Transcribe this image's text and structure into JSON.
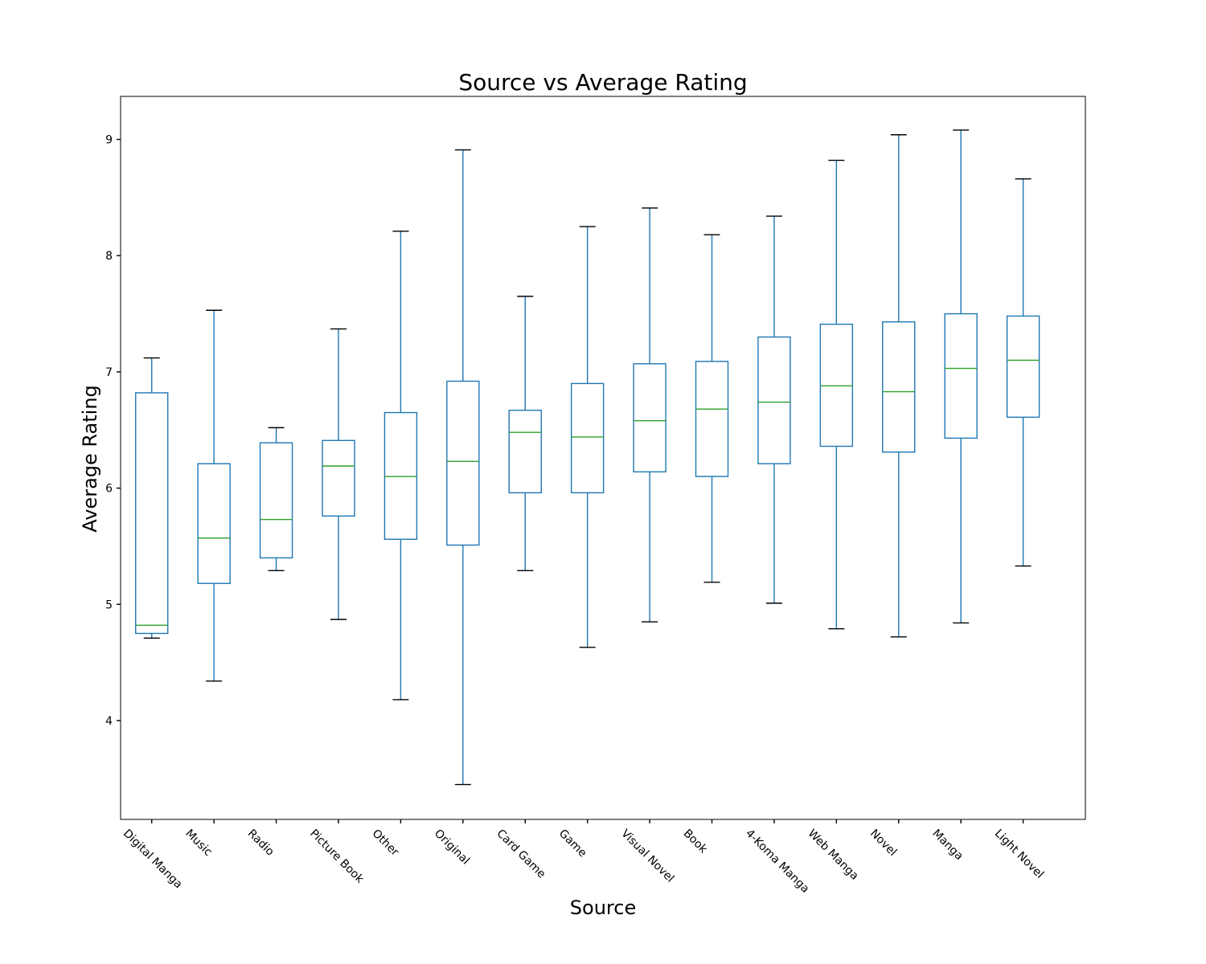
{
  "chart_data": {
    "type": "box",
    "title": "Source vs Average Rating",
    "xlabel": "Source",
    "ylabel": "Average Rating",
    "ylim": [
      3.15,
      9.37
    ],
    "yticks": [
      4,
      5,
      6,
      7,
      8,
      9
    ],
    "grid": false,
    "colors": {
      "box": "#1f77b4",
      "median": "#2ca02c",
      "cap": "#000000",
      "frame": "#000000"
    },
    "categories": [
      "Digital Manga",
      "Music",
      "Radio",
      "Picture Book",
      "Other",
      "Original",
      "Card Game",
      "Game",
      "Visual Novel",
      "Book",
      "4-Koma Manga",
      "Web Manga",
      "Novel",
      "Manga",
      "Light Novel"
    ],
    "boxes": [
      {
        "whisker_low": 4.71,
        "q1": 4.75,
        "median": 4.82,
        "q3": 6.82,
        "whisker_high": 7.12
      },
      {
        "whisker_low": 4.34,
        "q1": 5.18,
        "median": 5.57,
        "q3": 6.21,
        "whisker_high": 7.53
      },
      {
        "whisker_low": 5.29,
        "q1": 5.4,
        "median": 5.73,
        "q3": 6.39,
        "whisker_high": 6.52
      },
      {
        "whisker_low": 4.87,
        "q1": 5.76,
        "median": 6.19,
        "q3": 6.41,
        "whisker_high": 7.37
      },
      {
        "whisker_low": 4.18,
        "q1": 5.56,
        "median": 6.1,
        "q3": 6.65,
        "whisker_high": 8.21
      },
      {
        "whisker_low": 3.45,
        "q1": 5.51,
        "median": 6.23,
        "q3": 6.92,
        "whisker_high": 8.91
      },
      {
        "whisker_low": 5.29,
        "q1": 5.96,
        "median": 6.48,
        "q3": 6.67,
        "whisker_high": 7.65
      },
      {
        "whisker_low": 4.63,
        "q1": 5.96,
        "median": 6.44,
        "q3": 6.9,
        "whisker_high": 8.25
      },
      {
        "whisker_low": 4.85,
        "q1": 6.14,
        "median": 6.58,
        "q3": 7.07,
        "whisker_high": 8.41
      },
      {
        "whisker_low": 5.19,
        "q1": 6.1,
        "median": 6.68,
        "q3": 7.09,
        "whisker_high": 8.18
      },
      {
        "whisker_low": 5.01,
        "q1": 6.21,
        "median": 6.74,
        "q3": 7.3,
        "whisker_high": 8.34
      },
      {
        "whisker_low": 4.79,
        "q1": 6.36,
        "median": 6.88,
        "q3": 7.41,
        "whisker_high": 8.82
      },
      {
        "whisker_low": 4.72,
        "q1": 6.31,
        "median": 6.83,
        "q3": 7.43,
        "whisker_high": 9.04
      },
      {
        "whisker_low": 4.84,
        "q1": 6.43,
        "median": 7.03,
        "q3": 7.5,
        "whisker_high": 9.08
      },
      {
        "whisker_low": 5.33,
        "q1": 6.61,
        "median": 7.1,
        "q3": 7.48,
        "whisker_high": 8.66
      }
    ]
  }
}
